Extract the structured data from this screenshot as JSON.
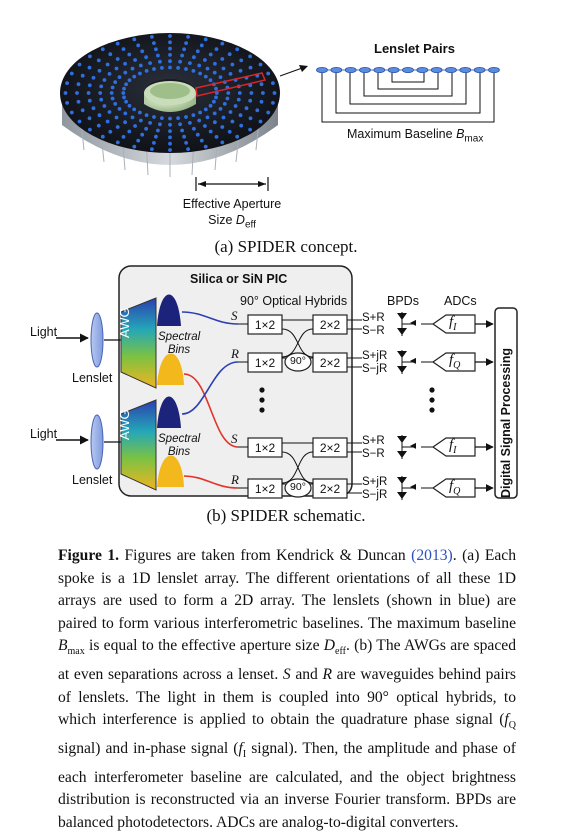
{
  "figure_a": {
    "lenslet_pairs_title": "Lenslet Pairs",
    "max_baseline_label": "Maximum Baseline",
    "max_baseline_symbol": "B",
    "max_baseline_sub": "max",
    "effective_aperture_line1": "Effective Aperture",
    "effective_aperture_line2": "Size",
    "effective_aperture_symbol": "D",
    "effective_aperture_sub": "eff",
    "caption": "(a)  SPIDER concept."
  },
  "figure_b": {
    "pic_title": "Silica or SiN PIC",
    "hybrids_title": "90° Optical Hybrids",
    "bpds_title": "BPDs",
    "adcs_title": "ADCs",
    "light_label": "Light",
    "lenslet_label": "Lenslet",
    "awg_label": "AWG",
    "spectral_bins_line1": "Spectral",
    "spectral_bins_line2": "Bins",
    "splitter_label": "1×2",
    "coupler_label": "2×2",
    "phase_label": "90°",
    "input_S": "S",
    "input_R": "R",
    "out_splus": "S+R",
    "out_sminus": "S−R",
    "out_sjplus": "S+jR",
    "out_sjminus": "S−jR",
    "adc_fI": "f",
    "adc_fI_sub": "I",
    "adc_fQ": "f",
    "adc_fQ_sub": "Q",
    "dsp_label": "Digital Signal Processing",
    "caption": "(b)  SPIDER schematic."
  },
  "main_caption": {
    "label": "Figure 1.",
    "t1": " Figures are taken from Kendrick & Duncan ",
    "cite": "(2013)",
    "t2": ". (a) Each spoke is a 1D lenslet array. The different orientations of all these 1D arrays are used to form a 2D array. The lenslets (shown in blue) are paired to form various interferometric baselines. The maximum baseline ",
    "bmax_sym": "B",
    "bmax_sub": "max",
    "t3": " is equal to the effective aperture size ",
    "deff_sym": "D",
    "deff_sub": "eff",
    "t4": ". (b) The AWGs are spaced at even separations across a lenset. ",
    "s_sym": "S",
    "t5": " and ",
    "r_sym": "R",
    "t6": " are waveguides behind pairs of lenslets. The light in them is coupled into 90° optical hybrids, to which interference is applied to obtain the quadrature phase signal (",
    "fq_sym": "f",
    "fq_sub": "Q",
    "t7": " signal) and in-phase signal (",
    "fi_sym": "f",
    "fi_sub": "I",
    "t8": " signal). Then, the amplitude and phase of each interferometer baseline are calculated, and the object brightness distribution is reconstructed via an inverse Fourier transform. BPDs are balanced photodetectors. ADCs are analog-to-digital converters."
  }
}
